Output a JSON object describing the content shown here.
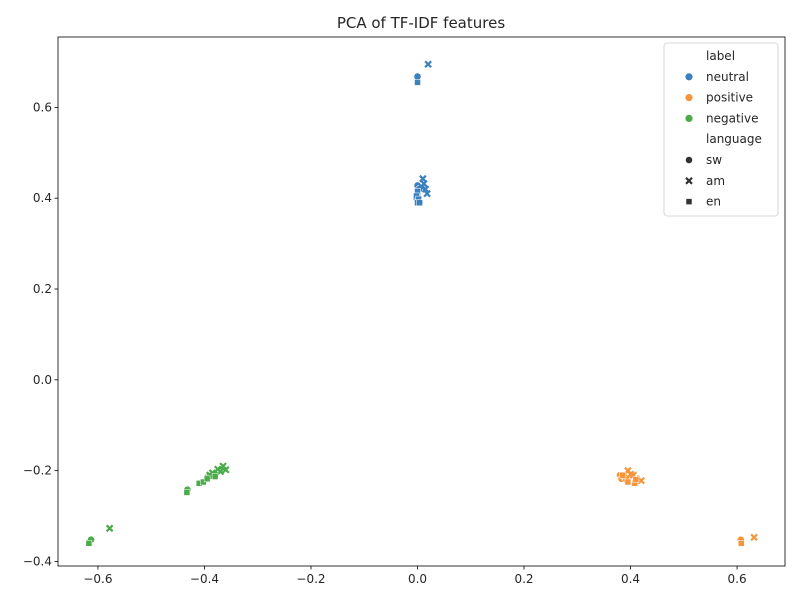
{
  "chart_data": {
    "type": "scatter",
    "title": "PCA of TF-IDF features",
    "xlabel": "",
    "ylabel": "",
    "xlim": [
      -0.675,
      0.69
    ],
    "ylim": [
      -0.41,
      0.755
    ],
    "xticks": [
      -0.6,
      -0.4,
      -0.2,
      0.0,
      0.2,
      0.4,
      0.6
    ],
    "xtick_labels": [
      "−0.6",
      "−0.4",
      "−0.2",
      "0.0",
      "0.2",
      "0.4",
      "0.6"
    ],
    "yticks": [
      -0.4,
      -0.2,
      0.0,
      0.2,
      0.4,
      0.6
    ],
    "ytick_labels": [
      "−0.4",
      "−0.2",
      "0.0",
      "0.2",
      "0.4",
      "0.6"
    ],
    "grid": false,
    "legend_position": "top-right",
    "legend": {
      "hue_title": "label",
      "hue_entries": [
        {
          "name": "neutral",
          "color": "#3b80bf"
        },
        {
          "name": "positive",
          "color": "#f59439"
        },
        {
          "name": "negative",
          "color": "#4aab4a"
        }
      ],
      "style_title": "language",
      "style_entries": [
        {
          "name": "sw",
          "marker": "circle"
        },
        {
          "name": "am",
          "marker": "x"
        },
        {
          "name": "en",
          "marker": "square"
        }
      ]
    },
    "series": [
      {
        "label": "neutral",
        "language": "sw",
        "points": [
          [
            0.0,
            0.668
          ],
          [
            0.0,
            0.428
          ],
          [
            0.003,
            0.42
          ],
          [
            0.0,
            0.41
          ],
          [
            -0.002,
            0.4
          ]
        ]
      },
      {
        "label": "neutral",
        "language": "am",
        "points": [
          [
            0.02,
            0.695
          ],
          [
            0.01,
            0.443
          ],
          [
            0.012,
            0.432
          ],
          [
            0.015,
            0.42
          ],
          [
            0.018,
            0.41
          ],
          [
            0.008,
            0.425
          ]
        ]
      },
      {
        "label": "neutral",
        "language": "en",
        "points": [
          [
            0.0,
            0.655
          ],
          [
            0.0,
            0.415
          ],
          [
            -0.002,
            0.405
          ],
          [
            0.002,
            0.398
          ],
          [
            0.0,
            0.39
          ],
          [
            0.004,
            0.39
          ]
        ]
      },
      {
        "label": "positive",
        "language": "sw",
        "points": [
          [
            0.607,
            -0.352
          ],
          [
            0.38,
            -0.21
          ],
          [
            0.383,
            -0.218
          ],
          [
            0.388,
            -0.213
          ],
          [
            0.392,
            -0.22
          ]
        ]
      },
      {
        "label": "positive",
        "language": "am",
        "points": [
          [
            0.632,
            -0.347
          ],
          [
            0.395,
            -0.2
          ],
          [
            0.405,
            -0.21
          ],
          [
            0.41,
            -0.218
          ],
          [
            0.42,
            -0.222
          ],
          [
            0.4,
            -0.208
          ]
        ]
      },
      {
        "label": "positive",
        "language": "en",
        "points": [
          [
            0.608,
            -0.36
          ],
          [
            0.385,
            -0.21
          ],
          [
            0.395,
            -0.225
          ],
          [
            0.408,
            -0.228
          ],
          [
            0.41,
            -0.22
          ]
        ]
      },
      {
        "label": "negative",
        "language": "sw",
        "points": [
          [
            -0.613,
            -0.352
          ],
          [
            -0.432,
            -0.242
          ],
          [
            -0.395,
            -0.215
          ],
          [
            -0.38,
            -0.208
          ],
          [
            -0.39,
            -0.212
          ]
        ]
      },
      {
        "label": "negative",
        "language": "am",
        "points": [
          [
            -0.578,
            -0.327
          ],
          [
            -0.365,
            -0.19
          ],
          [
            -0.36,
            -0.198
          ],
          [
            -0.37,
            -0.202
          ],
          [
            -0.375,
            -0.197
          ],
          [
            -0.385,
            -0.205
          ],
          [
            -0.39,
            -0.21
          ]
        ]
      },
      {
        "label": "negative",
        "language": "en",
        "points": [
          [
            -0.617,
            -0.36
          ],
          [
            -0.433,
            -0.248
          ],
          [
            -0.41,
            -0.228
          ],
          [
            -0.402,
            -0.225
          ],
          [
            -0.395,
            -0.218
          ],
          [
            -0.38,
            -0.213
          ]
        ]
      }
    ]
  }
}
